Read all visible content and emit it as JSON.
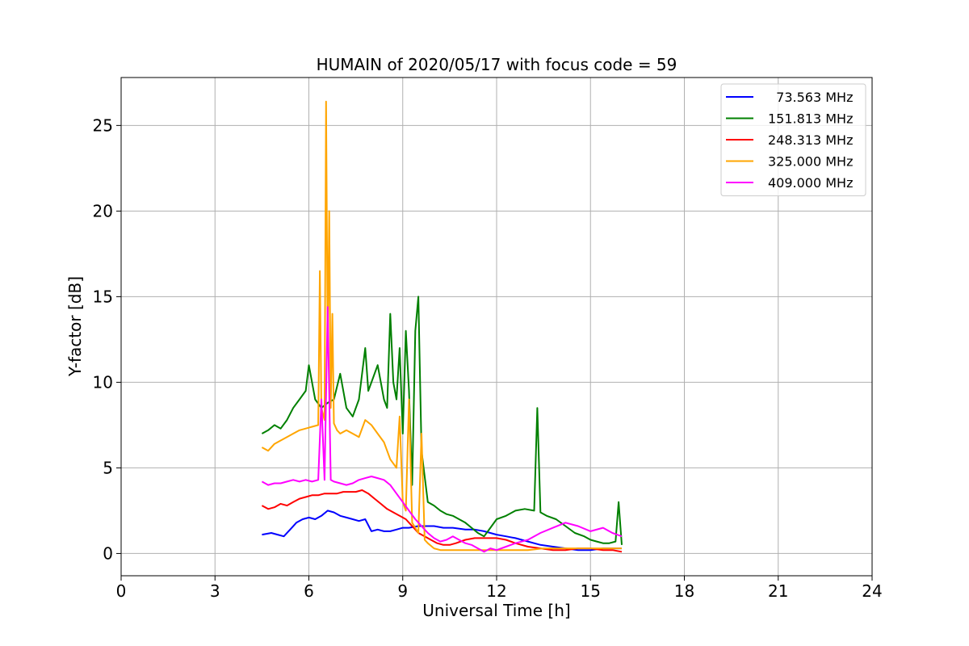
{
  "chart_data": {
    "type": "line",
    "title": "HUMAIN of 2020/05/17 with focus code = 59",
    "xlabel": "Universal Time [h]",
    "ylabel": "Y-factor [dB]",
    "xlim": [
      0,
      24
    ],
    "ylim": [
      -1.3,
      27.8
    ],
    "xticks": [
      0,
      3,
      6,
      9,
      12,
      15,
      18,
      21,
      24
    ],
    "yticks": [
      0,
      5,
      10,
      15,
      20,
      25
    ],
    "grid": true,
    "legend_position": "top-right",
    "series": [
      {
        "name": "  73.563 MHz",
        "color": "#0000ff",
        "x": [
          4.5,
          4.8,
          5.0,
          5.2,
          5.4,
          5.6,
          5.8,
          6.0,
          6.2,
          6.4,
          6.6,
          6.8,
          7.0,
          7.2,
          7.4,
          7.6,
          7.8,
          8.0,
          8.2,
          8.4,
          8.6,
          8.8,
          9.0,
          9.2,
          9.5,
          9.8,
          10.0,
          10.3,
          10.6,
          11.0,
          11.3,
          11.6,
          12.0,
          12.3,
          12.6,
          13.0,
          13.4,
          13.8,
          14.2,
          14.6,
          15.0,
          15.4,
          15.7,
          16.0
        ],
        "y": [
          1.1,
          1.2,
          1.1,
          1.0,
          1.4,
          1.8,
          2.0,
          2.1,
          2.0,
          2.2,
          2.5,
          2.4,
          2.2,
          2.1,
          2.0,
          1.9,
          2.0,
          1.3,
          1.4,
          1.3,
          1.3,
          1.4,
          1.5,
          1.5,
          1.6,
          1.6,
          1.6,
          1.5,
          1.5,
          1.4,
          1.4,
          1.3,
          1.1,
          1.0,
          0.9,
          0.7,
          0.5,
          0.4,
          0.3,
          0.2,
          0.2,
          0.3,
          0.3,
          0.3
        ]
      },
      {
        "name": "151.813 MHz",
        "color": "#008000",
        "x": [
          4.5,
          4.7,
          4.9,
          5.1,
          5.3,
          5.5,
          5.7,
          5.9,
          6.0,
          6.2,
          6.4,
          6.6,
          6.8,
          7.0,
          7.2,
          7.4,
          7.6,
          7.8,
          7.9,
          8.0,
          8.2,
          8.4,
          8.5,
          8.6,
          8.7,
          8.8,
          8.9,
          9.0,
          9.1,
          9.2,
          9.3,
          9.4,
          9.5,
          9.6,
          9.7,
          9.8,
          10.0,
          10.2,
          10.4,
          10.6,
          10.8,
          11.0,
          11.2,
          11.4,
          11.6,
          11.8,
          12.0,
          12.3,
          12.6,
          12.9,
          13.2,
          13.3,
          13.4,
          13.6,
          13.9,
          14.2,
          14.5,
          14.8,
          15.0,
          15.2,
          15.4,
          15.6,
          15.8,
          15.9,
          16.0
        ],
        "y": [
          7.0,
          7.2,
          7.5,
          7.3,
          7.8,
          8.5,
          9.0,
          9.5,
          11.0,
          9.0,
          8.5,
          8.8,
          9.0,
          10.5,
          8.5,
          8.0,
          9.0,
          12.0,
          9.5,
          10.0,
          11.0,
          9.0,
          8.5,
          14.0,
          10.0,
          9.0,
          12.0,
          7.0,
          13.0,
          9.5,
          4.0,
          13.0,
          15.0,
          6.0,
          4.5,
          3.0,
          2.8,
          2.5,
          2.3,
          2.2,
          2.0,
          1.8,
          1.5,
          1.2,
          1.0,
          1.5,
          2.0,
          2.2,
          2.5,
          2.6,
          2.5,
          8.5,
          2.4,
          2.2,
          2.0,
          1.6,
          1.2,
          1.0,
          0.8,
          0.7,
          0.6,
          0.6,
          0.7,
          3.0,
          0.5
        ]
      },
      {
        "name": "248.313 MHz",
        "color": "#ff0000",
        "x": [
          4.5,
          4.7,
          4.9,
          5.1,
          5.3,
          5.5,
          5.7,
          5.9,
          6.1,
          6.3,
          6.5,
          6.7,
          6.9,
          7.1,
          7.3,
          7.5,
          7.7,
          7.9,
          8.1,
          8.3,
          8.5,
          8.7,
          8.9,
          9.1,
          9.3,
          9.5,
          9.7,
          9.9,
          10.1,
          10.3,
          10.5,
          10.7,
          11.0,
          11.3,
          11.6,
          12.0,
          12.3,
          12.6,
          13.0,
          13.4,
          13.8,
          14.2,
          14.6,
          15.0,
          15.4,
          15.7,
          16.0
        ],
        "y": [
          2.8,
          2.6,
          2.7,
          2.9,
          2.8,
          3.0,
          3.2,
          3.3,
          3.4,
          3.4,
          3.5,
          3.5,
          3.5,
          3.6,
          3.6,
          3.6,
          3.7,
          3.5,
          3.2,
          2.9,
          2.6,
          2.4,
          2.2,
          2.0,
          1.6,
          1.2,
          1.0,
          0.8,
          0.6,
          0.5,
          0.5,
          0.6,
          0.8,
          0.9,
          0.9,
          0.9,
          0.8,
          0.6,
          0.4,
          0.3,
          0.2,
          0.2,
          0.3,
          0.3,
          0.2,
          0.2,
          0.1
        ]
      },
      {
        "name": "325.000 MHz",
        "color": "#ffa500",
        "x": [
          4.5,
          4.7,
          4.9,
          5.1,
          5.3,
          5.5,
          5.7,
          5.9,
          6.1,
          6.3,
          6.35,
          6.4,
          6.5,
          6.55,
          6.6,
          6.65,
          6.7,
          6.75,
          6.8,
          6.9,
          7.0,
          7.2,
          7.4,
          7.6,
          7.8,
          8.0,
          8.2,
          8.4,
          8.6,
          8.8,
          8.9,
          9.0,
          9.1,
          9.2,
          9.3,
          9.4,
          9.5,
          9.6,
          9.7,
          9.8,
          10.0,
          10.2,
          10.5,
          10.8,
          11.2,
          11.6,
          12.0,
          12.5,
          13.0,
          13.5,
          14.0,
          14.5,
          15.0,
          15.5,
          16.0
        ],
        "y": [
          6.2,
          6.0,
          6.4,
          6.6,
          6.8,
          7.0,
          7.2,
          7.3,
          7.4,
          7.5,
          16.5,
          8.5,
          7.8,
          26.4,
          12.0,
          20.0,
          8.5,
          14.0,
          7.6,
          7.2,
          7.0,
          7.2,
          7.0,
          6.8,
          7.8,
          7.5,
          7.0,
          6.5,
          5.5,
          5.0,
          8.0,
          3.0,
          2.5,
          9.0,
          1.8,
          1.5,
          1.2,
          7.0,
          0.8,
          0.6,
          0.3,
          0.2,
          0.2,
          0.2,
          0.2,
          0.2,
          0.2,
          0.2,
          0.2,
          0.3,
          0.3,
          0.3,
          0.3,
          0.3,
          0.3
        ]
      },
      {
        "name": "409.000 MHz",
        "color": "#ff00ff",
        "x": [
          4.5,
          4.7,
          4.9,
          5.1,
          5.3,
          5.5,
          5.7,
          5.9,
          6.1,
          6.3,
          6.4,
          6.5,
          6.6,
          6.7,
          6.8,
          7.0,
          7.2,
          7.4,
          7.6,
          7.8,
          8.0,
          8.2,
          8.4,
          8.6,
          8.8,
          9.0,
          9.2,
          9.4,
          9.6,
          9.8,
          10.0,
          10.2,
          10.4,
          10.6,
          10.8,
          11.0,
          11.2,
          11.4,
          11.6,
          11.8,
          12.0,
          12.3,
          12.6,
          13.0,
          13.4,
          13.8,
          14.2,
          14.6,
          15.0,
          15.4,
          15.7,
          16.0
        ],
        "y": [
          4.2,
          4.0,
          4.1,
          4.1,
          4.2,
          4.3,
          4.2,
          4.3,
          4.2,
          4.3,
          9.0,
          4.3,
          14.4,
          4.3,
          4.2,
          4.1,
          4.0,
          4.1,
          4.3,
          4.4,
          4.5,
          4.4,
          4.3,
          4.0,
          3.5,
          3.0,
          2.5,
          2.0,
          1.6,
          1.2,
          0.9,
          0.7,
          0.8,
          1.0,
          0.8,
          0.6,
          0.5,
          0.3,
          0.1,
          0.3,
          0.2,
          0.4,
          0.6,
          0.8,
          1.2,
          1.5,
          1.8,
          1.6,
          1.3,
          1.5,
          1.2,
          1.0
        ]
      }
    ]
  }
}
